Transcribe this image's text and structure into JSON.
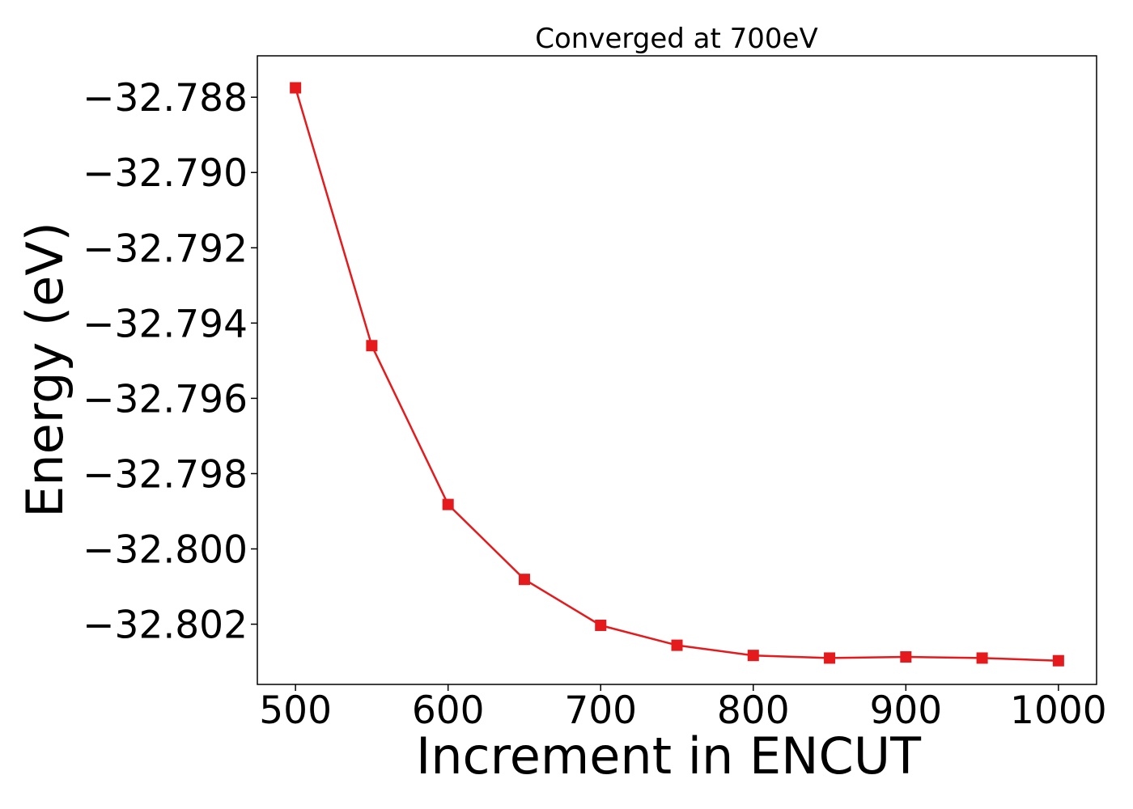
{
  "chart_data": {
    "type": "line",
    "title": "Converged at 700eV",
    "xlabel": "Increment in ENCUT",
    "ylabel": "Energy (eV)",
    "x": [
      500,
      550,
      600,
      650,
      700,
      750,
      800,
      850,
      900,
      950,
      1000
    ],
    "series": [
      {
        "values": [
          -32.78775,
          -32.7946,
          -32.79882,
          -32.80081,
          -32.80203,
          -32.80256,
          -32.80283,
          -32.8029,
          -32.80287,
          -32.8029,
          -32.80297
        ],
        "color": "#e41a1c",
        "marker": "square"
      }
    ],
    "xlim": [
      475,
      1025
    ],
    "ylim": [
      -32.8036,
      -32.7869
    ],
    "xticks": [
      500,
      600,
      700,
      800,
      900,
      1000
    ],
    "xtick_labels": [
      "500",
      "600",
      "700",
      "800",
      "900",
      "1000"
    ],
    "yticks": [
      -32.788,
      -32.79,
      -32.792,
      -32.794,
      -32.796,
      -32.798,
      -32.8,
      -32.802
    ],
    "ytick_labels": [
      "−32.788",
      "−32.790",
      "−32.792",
      "−32.794",
      "−32.796",
      "−32.798",
      "−32.800",
      "−32.802"
    ],
    "grid": false,
    "legend": "none"
  }
}
